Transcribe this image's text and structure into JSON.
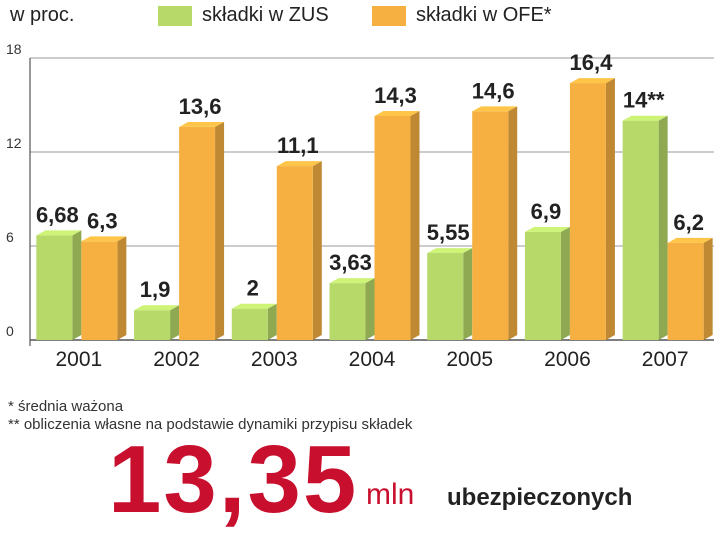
{
  "header": {
    "unit_label": "w proc."
  },
  "legend": [
    {
      "label": "składki w ZUS",
      "color": "#b7d96a"
    },
    {
      "label": "składki w OFE*",
      "color": "#f5b041"
    }
  ],
  "chart_data": {
    "type": "bar",
    "categories": [
      "2001",
      "2002",
      "2003",
      "2004",
      "2005",
      "2006",
      "2007"
    ],
    "series": [
      {
        "name": "składki w ZUS",
        "values": [
          6.68,
          1.9,
          2,
          3.63,
          5.55,
          6.9,
          14
        ],
        "labels": [
          "6,68",
          "1,9",
          "2",
          "3,63",
          "5,55",
          "6,9",
          "14**"
        ]
      },
      {
        "name": "składki w OFE*",
        "values": [
          6.3,
          13.6,
          11.1,
          14.3,
          14.6,
          16.4,
          6.2
        ],
        "labels": [
          "6,3",
          "13,6",
          "11,1",
          "14,3",
          "14,6",
          "16,4",
          "6,2"
        ]
      }
    ],
    "ylim": [
      0,
      18
    ],
    "yticks": [
      0,
      6,
      12,
      18
    ],
    "grid": true,
    "colors": {
      "zus": "#b7d96a",
      "ofe": "#f5b041"
    }
  },
  "footnotes": [
    "* średnia ważona",
    "** obliczenia własne na podstawie dynamiki przypisu składek"
  ],
  "headline": {
    "number": "13,35",
    "unit": "mln",
    "text": "ubezpieczonych"
  }
}
